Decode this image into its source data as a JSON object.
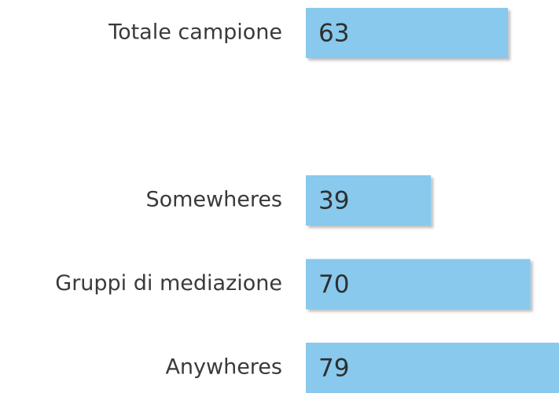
{
  "chart_data": {
    "type": "bar",
    "orientation": "horizontal",
    "categories": [
      "Totale campione",
      null,
      "Somewheres",
      "Gruppi di mediazione",
      "Anywheres"
    ],
    "values": [
      63,
      null,
      39,
      70,
      79
    ],
    "color": "#88c9ed",
    "data_labels": true
  }
}
